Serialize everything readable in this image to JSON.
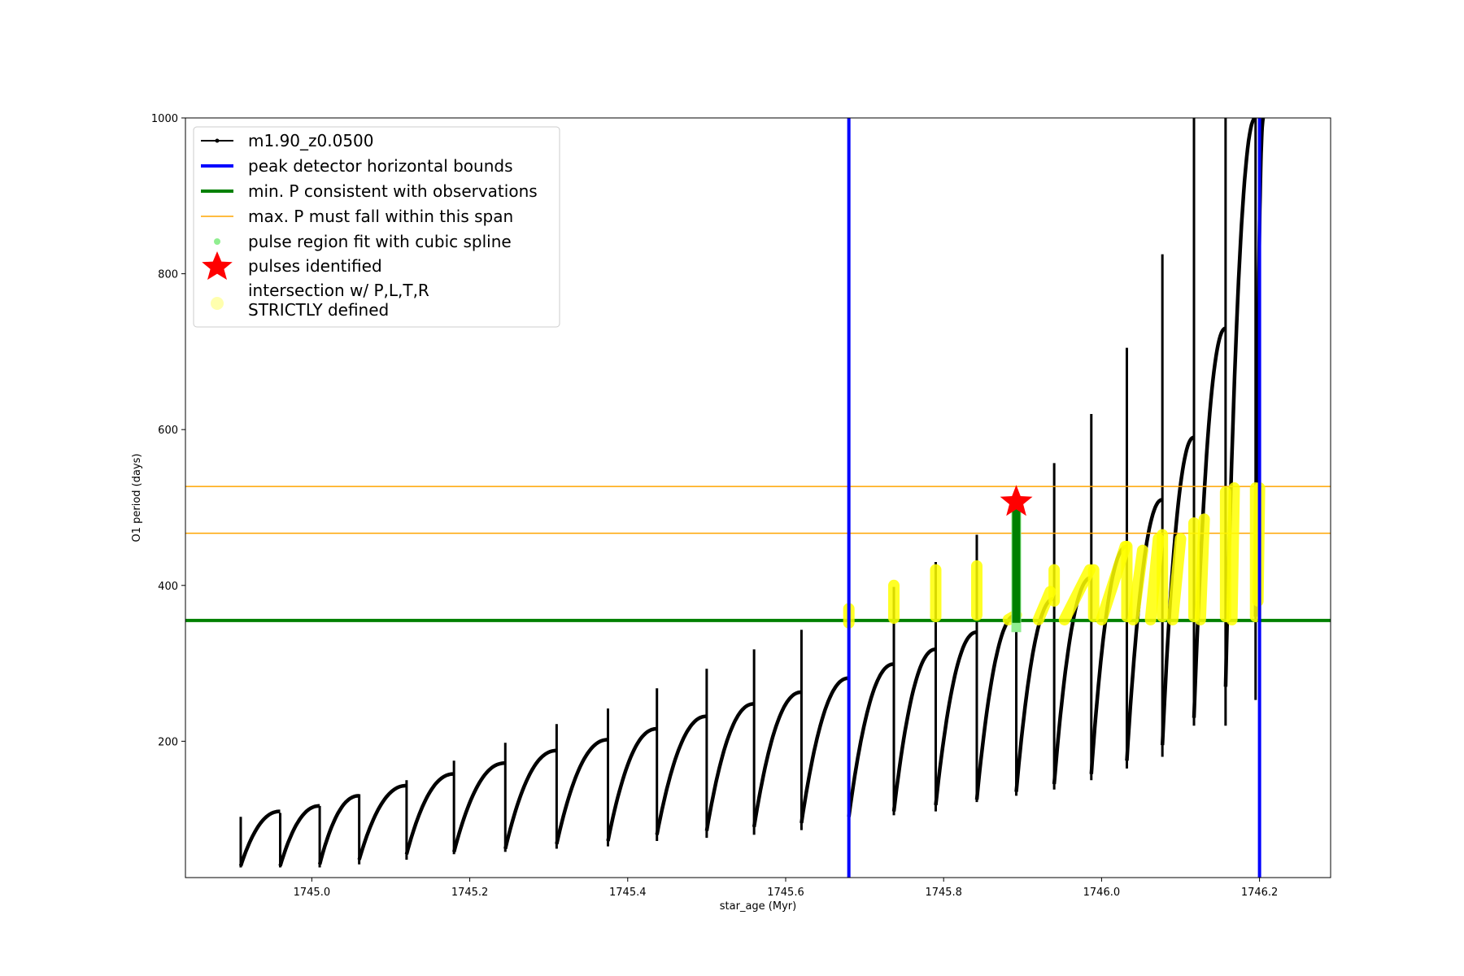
{
  "chart_data": {
    "type": "line",
    "xlabel": "star_age (Myr)",
    "ylabel": "O1 period (days)",
    "xlim": [
      1744.84,
      1746.29
    ],
    "ylim": [
      25,
      1000
    ],
    "xticks": [
      1745.0,
      1745.2,
      1745.4,
      1745.6,
      1745.8,
      1746.0,
      1746.2
    ],
    "xtick_labels": [
      "1745.0",
      "1745.2",
      "1745.4",
      "1745.6",
      "1745.8",
      "1746.0",
      "1746.2"
    ],
    "yticks": [
      200,
      400,
      600,
      800,
      1000
    ],
    "ytick_labels": [
      "200",
      "400",
      "600",
      "800",
      "1000"
    ],
    "grid": false,
    "legend_placement": "upper-left",
    "legend": [
      {
        "label": "m1.90_z0.0500",
        "kind": "line-marker",
        "color": "#000000"
      },
      {
        "label": "peak detector horizontal bounds",
        "kind": "line",
        "color": "#0000ff"
      },
      {
        "label": "min. P consistent with observations",
        "kind": "line",
        "color": "#008000"
      },
      {
        "label": "max. P must fall within this span",
        "kind": "line",
        "color": "#ffa500"
      },
      {
        "label": "pulse region fit with cubic spline",
        "kind": "dot",
        "color": "#90ee90"
      },
      {
        "label": "pulses identified",
        "kind": "star",
        "color": "#ff0000"
      },
      {
        "label": "intersection w/ P,L,T,R",
        "label2": "STRICTLY defined",
        "kind": "circle",
        "color": "#ffffa0"
      }
    ],
    "vertical_bounds_x": [
      1745.68,
      1746.2
    ],
    "min_period": 355,
    "max_period_span": [
      467,
      527
    ],
    "pulse_identified": {
      "x": 1745.892,
      "y": 507
    },
    "pulse_spline": {
      "x": 1745.892,
      "y_min": 340,
      "y_max": 505
    },
    "cycles": [
      {
        "start": 1744.91,
        "end": 1744.96,
        "p_start": 40,
        "p_end": 110,
        "spike_top": 103,
        "spike_bottom": 38
      },
      {
        "start": 1744.96,
        "end": 1745.01,
        "p_start": 40,
        "p_end": 117,
        "spike_top": 108,
        "spike_bottom": 38
      },
      {
        "start": 1745.01,
        "end": 1745.06,
        "p_start": 42,
        "p_end": 130,
        "spike_top": 117,
        "spike_bottom": 38
      },
      {
        "start": 1745.06,
        "end": 1745.12,
        "p_start": 48,
        "p_end": 143,
        "spike_top": 132,
        "spike_bottom": 42
      },
      {
        "start": 1745.12,
        "end": 1745.18,
        "p_start": 55,
        "p_end": 158,
        "spike_top": 150,
        "spike_bottom": 48
      },
      {
        "start": 1745.18,
        "end": 1745.245,
        "p_start": 58,
        "p_end": 172,
        "spike_top": 175,
        "spike_bottom": 55
      },
      {
        "start": 1745.245,
        "end": 1745.31,
        "p_start": 62,
        "p_end": 188,
        "spike_top": 198,
        "spike_bottom": 58
      },
      {
        "start": 1745.31,
        "end": 1745.375,
        "p_start": 68,
        "p_end": 202,
        "spike_top": 222,
        "spike_bottom": 62
      },
      {
        "start": 1745.375,
        "end": 1745.437,
        "p_start": 72,
        "p_end": 216,
        "spike_top": 242,
        "spike_bottom": 65
      },
      {
        "start": 1745.437,
        "end": 1745.5,
        "p_start": 80,
        "p_end": 232,
        "spike_top": 268,
        "spike_bottom": 72
      },
      {
        "start": 1745.5,
        "end": 1745.56,
        "p_start": 85,
        "p_end": 248,
        "spike_top": 293,
        "spike_bottom": 76
      },
      {
        "start": 1745.56,
        "end": 1745.62,
        "p_start": 90,
        "p_end": 263,
        "spike_top": 318,
        "spike_bottom": 80
      },
      {
        "start": 1745.62,
        "end": 1745.68,
        "p_start": 95,
        "p_end": 281,
        "spike_top": 343,
        "spike_bottom": 86
      },
      {
        "start": 1745.68,
        "end": 1745.737,
        "p_start": 103,
        "p_end": 299,
        "spike_top": 372,
        "spike_bottom": 100
      },
      {
        "start": 1745.737,
        "end": 1745.79,
        "p_start": 110,
        "p_end": 318,
        "spike_top": 398,
        "spike_bottom": 105
      },
      {
        "start": 1745.79,
        "end": 1745.842,
        "p_start": 118,
        "p_end": 340,
        "spike_top": 430,
        "spike_bottom": 110
      },
      {
        "start": 1745.842,
        "end": 1745.892,
        "p_start": 125,
        "p_end": 362,
        "spike_top": 465,
        "spike_bottom": 122
      },
      {
        "start": 1745.892,
        "end": 1745.94,
        "p_start": 135,
        "p_end": 383,
        "spike_top": 507,
        "spike_bottom": 130
      },
      {
        "start": 1745.94,
        "end": 1745.987,
        "p_start": 145,
        "p_end": 410,
        "spike_top": 557,
        "spike_bottom": 138
      },
      {
        "start": 1745.987,
        "end": 1746.032,
        "p_start": 158,
        "p_end": 450,
        "spike_top": 620,
        "spike_bottom": 150
      },
      {
        "start": 1746.032,
        "end": 1746.077,
        "p_start": 175,
        "p_end": 510,
        "spike_top": 705,
        "spike_bottom": 165
      },
      {
        "start": 1746.077,
        "end": 1746.117,
        "p_start": 195,
        "p_end": 590,
        "spike_top": 825,
        "spike_bottom": 180
      },
      {
        "start": 1746.117,
        "end": 1746.157,
        "p_start": 230,
        "p_end": 730,
        "spike_top": 1000,
        "spike_bottom": 220
      },
      {
        "start": 1746.157,
        "end": 1746.195,
        "p_start": 270,
        "p_end": 1000,
        "spike_top": 1000,
        "spike_bottom": 220
      },
      {
        "start": 1746.195,
        "end": 1746.205,
        "p_start": 360,
        "p_end": 1000,
        "spike_top": 1000,
        "spike_bottom": 253
      }
    ],
    "yellow_segments": [
      {
        "x0": 1745.68,
        "x1": 1745.68,
        "y0": 352,
        "y1": 370
      },
      {
        "x0": 1745.737,
        "x1": 1745.737,
        "y0": 358,
        "y1": 400
      },
      {
        "x0": 1745.79,
        "x1": 1745.79,
        "y0": 360,
        "y1": 420
      },
      {
        "x0": 1745.842,
        "x1": 1745.842,
        "y0": 362,
        "y1": 425
      },
      {
        "x0": 1745.882,
        "x1": 1745.892,
        "y0": 356,
        "y1": 362
      },
      {
        "x0": 1745.92,
        "x1": 1745.935,
        "y0": 356,
        "y1": 392
      },
      {
        "x0": 1745.94,
        "x1": 1745.94,
        "y0": 380,
        "y1": 420
      },
      {
        "x0": 1745.953,
        "x1": 1745.985,
        "y0": 356,
        "y1": 420
      },
      {
        "x0": 1745.99,
        "x1": 1745.99,
        "y0": 360,
        "y1": 420
      },
      {
        "x0": 1746.0,
        "x1": 1746.03,
        "y0": 356,
        "y1": 450
      },
      {
        "x0": 1746.032,
        "x1": 1746.032,
        "y0": 360,
        "y1": 450
      },
      {
        "x0": 1746.04,
        "x1": 1746.052,
        "y0": 356,
        "y1": 445
      },
      {
        "x0": 1746.062,
        "x1": 1746.072,
        "y0": 356,
        "y1": 460
      },
      {
        "x0": 1746.077,
        "x1": 1746.077,
        "y0": 360,
        "y1": 465
      },
      {
        "x0": 1746.09,
        "x1": 1746.1,
        "y0": 356,
        "y1": 460
      },
      {
        "x0": 1746.117,
        "x1": 1746.117,
        "y0": 360,
        "y1": 480
      },
      {
        "x0": 1746.125,
        "x1": 1746.13,
        "y0": 356,
        "y1": 485
      },
      {
        "x0": 1746.157,
        "x1": 1746.157,
        "y0": 360,
        "y1": 520
      },
      {
        "x0": 1746.165,
        "x1": 1746.168,
        "y0": 356,
        "y1": 525
      },
      {
        "x0": 1746.195,
        "x1": 1746.195,
        "y0": 360,
        "y1": 525
      },
      {
        "x0": 1746.198,
        "x1": 1746.2,
        "y0": 380,
        "y1": 525
      }
    ]
  }
}
